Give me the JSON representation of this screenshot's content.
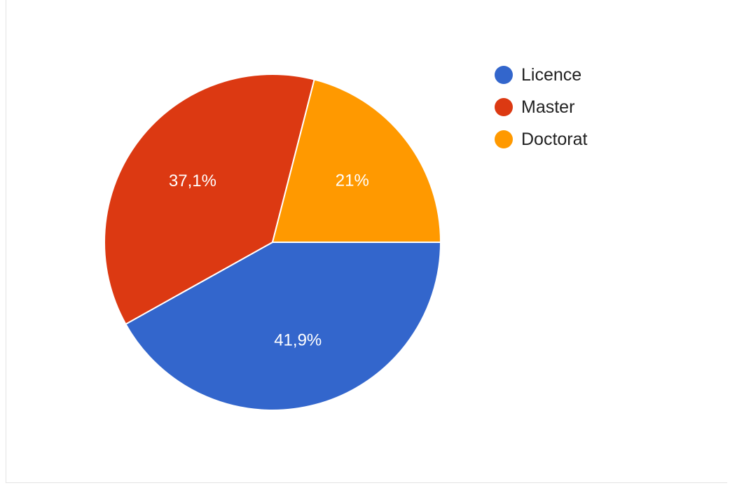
{
  "chart_data": {
    "type": "pie",
    "slices": [
      {
        "label": "Licence",
        "value": 41.9,
        "display": "41,9%",
        "color": "#3366cc"
      },
      {
        "label": "Master",
        "value": 37.1,
        "display": "37,1%",
        "color": "#dc3912"
      },
      {
        "label": "Doctorat",
        "value": 21.0,
        "display": "21%",
        "color": "#ff9900"
      }
    ],
    "legend_position": "right"
  }
}
